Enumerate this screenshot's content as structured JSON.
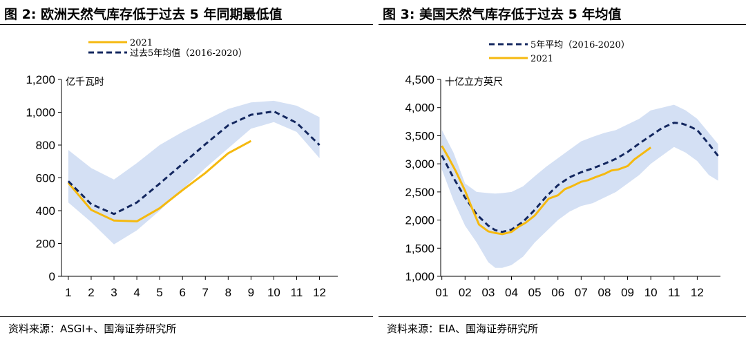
{
  "left": {
    "title": "图 2:  欧洲天然气库存低于过去 5 年同期最低值",
    "source": "资料来源：ASGI+、国海证券研究所",
    "chart_data": {
      "type": "line",
      "title": "欧洲天然气库存低于过去 5 年同期最低值",
      "ylabel": "亿千瓦时",
      "xlabel": "",
      "ylim": [
        0,
        1200
      ],
      "xlim": [
        0.7,
        12.8
      ],
      "yticks": [
        0,
        200,
        400,
        600,
        800,
        1000,
        1200
      ],
      "ytick_labels": [
        "0",
        "200",
        "400",
        "600",
        "800",
        "1,000",
        "1,200"
      ],
      "xticks": [
        1,
        2,
        3,
        4,
        5,
        6,
        7,
        8,
        9,
        10,
        11,
        12
      ],
      "xtick_labels": [
        "1",
        "2",
        "3",
        "4",
        "5",
        "6",
        "7",
        "8",
        "9",
        "10",
        "11",
        "12"
      ],
      "legend_position": "top",
      "band": {
        "x": [
          1,
          2,
          3,
          4,
          5,
          6,
          7,
          8,
          9,
          10,
          11,
          12
        ],
        "low": [
          450,
          330,
          195,
          280,
          400,
          530,
          660,
          780,
          900,
          940,
          880,
          720
        ],
        "high": [
          770,
          660,
          590,
          690,
          800,
          880,
          950,
          1020,
          1060,
          1070,
          1040,
          970
        ],
        "color": "#d4e0f4"
      },
      "series": [
        {
          "name": "2021",
          "style": "solid",
          "color": "#f5b90f",
          "x": [
            1,
            2,
            3,
            4,
            5,
            6,
            7,
            8,
            9
          ],
          "values": [
            570,
            405,
            340,
            335,
            415,
            525,
            630,
            750,
            825
          ]
        },
        {
          "name": "过去5年均值（2016-2020）",
          "style": "dashed",
          "color": "#13275f",
          "x": [
            1,
            2,
            3,
            4,
            5,
            6,
            7,
            8,
            9,
            10,
            11,
            12
          ],
          "values": [
            580,
            440,
            380,
            450,
            565,
            685,
            805,
            920,
            985,
            1005,
            935,
            800
          ]
        }
      ]
    }
  },
  "right": {
    "title": "图 3:  美国天然气库存低于过去 5 年均值",
    "source": "资料来源：EIA、国海证券研究所",
    "chart_data": {
      "type": "line",
      "title": "美国天然气库存低于过去 5 年均值",
      "ylabel": "十亿立方英尺",
      "xlabel": "",
      "ylim": [
        1000,
        4500
      ],
      "xlim": [
        0.95,
        13.0
      ],
      "yticks": [
        1000,
        1500,
        2000,
        2500,
        3000,
        3500,
        4000,
        4500
      ],
      "ytick_labels": [
        "1,000",
        "1,500",
        "2,000",
        "2,500",
        "3,000",
        "3,500",
        "4,000",
        "4,500"
      ],
      "xticks": [
        1,
        2,
        3,
        4,
        5,
        6,
        7,
        8,
        9,
        10,
        11,
        12
      ],
      "xtick_labels": [
        "01",
        "02",
        "03",
        "04",
        "05",
        "06",
        "07",
        "08",
        "09",
        "10",
        "11",
        "12"
      ],
      "legend_position": "top",
      "band": {
        "x": [
          1,
          1.5,
          2,
          2.5,
          3,
          3.3,
          3.6,
          4,
          4.5,
          5,
          5.5,
          6,
          6.5,
          7,
          7.5,
          8,
          8.5,
          9,
          9.5,
          10,
          10.5,
          11,
          11.5,
          12,
          12.5,
          12.9
        ],
        "low": [
          2900,
          2350,
          1900,
          1600,
          1250,
          1150,
          1150,
          1200,
          1350,
          1600,
          1800,
          2000,
          2150,
          2250,
          2300,
          2400,
          2500,
          2650,
          2800,
          3000,
          3150,
          3300,
          3200,
          3050,
          2800,
          2700
        ],
        "high": [
          3600,
          3200,
          2650,
          2500,
          2480,
          2470,
          2480,
          2500,
          2600,
          2780,
          2950,
          3100,
          3250,
          3400,
          3480,
          3550,
          3600,
          3700,
          3800,
          3950,
          4000,
          4050,
          3950,
          3800,
          3550,
          3350
        ],
        "color": "#d4e0f4"
      },
      "series": [
        {
          "name": "5年平均（2016-2020）",
          "style": "dashed",
          "color": "#13275f",
          "x": [
            1,
            1.5,
            2,
            2.5,
            3,
            3.3,
            3.6,
            4,
            4.5,
            5,
            5.5,
            6,
            6.5,
            7,
            7.5,
            8,
            8.5,
            9,
            9.5,
            10,
            10.5,
            11,
            11.3,
            11.6,
            12,
            12.5,
            12.9
          ],
          "values": [
            3150,
            2750,
            2400,
            2100,
            1900,
            1820,
            1790,
            1830,
            1970,
            2180,
            2420,
            2620,
            2760,
            2850,
            2920,
            3000,
            3090,
            3210,
            3360,
            3500,
            3640,
            3730,
            3720,
            3680,
            3600,
            3350,
            3140
          ]
        },
        {
          "name": "2021",
          "style": "solid",
          "color": "#f5b90f",
          "x": [
            1,
            1.3,
            1.6,
            2,
            2.3,
            2.6,
            3,
            3.3,
            3.6,
            4,
            4.3,
            4.6,
            5,
            5.3,
            5.6,
            6,
            6.3,
            6.6,
            7,
            7.3,
            7.6,
            8,
            8.3,
            8.6,
            9,
            9.3,
            9.6,
            10
          ],
          "values": [
            3320,
            3100,
            2870,
            2520,
            2210,
            1920,
            1800,
            1770,
            1750,
            1790,
            1880,
            1950,
            2080,
            2230,
            2380,
            2440,
            2550,
            2600,
            2680,
            2710,
            2760,
            2820,
            2880,
            2900,
            2960,
            3080,
            3170,
            3290
          ]
        }
      ]
    }
  }
}
